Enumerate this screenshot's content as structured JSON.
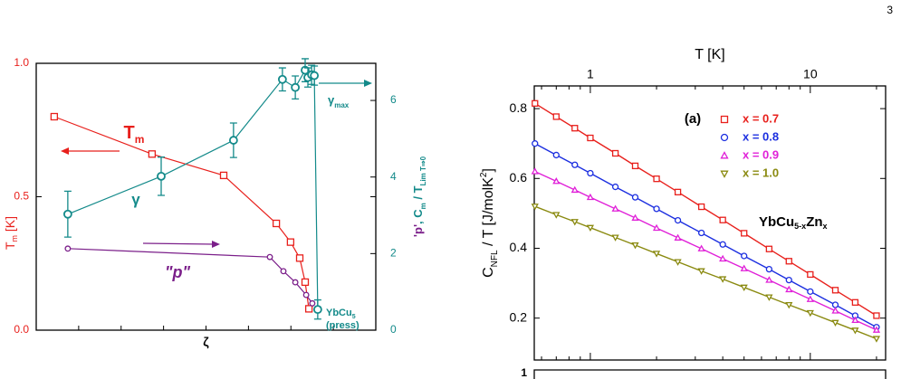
{
  "page_number": "3",
  "lower_panel": {
    "ytick_label": "1"
  },
  "chart_data": [
    {
      "type": "line",
      "xlabel": "ζ",
      "xlim": [
        0,
        1
      ],
      "ylim": [
        0,
        1
      ],
      "yticks": [
        {
          "value": 0,
          "label": "0.0"
        },
        {
          "value": 0.5,
          "label": "0.5"
        },
        {
          "value": 1,
          "label": "1.0"
        }
      ],
      "y2lim": [
        0,
        6.97
      ],
      "y2ticks": [
        0,
        2,
        4,
        6
      ],
      "ycolor": "#e8201c",
      "y2color": "#138a8a",
      "ylabel": [
        {
          "text": "T",
          "color": "#e8201c"
        },
        {
          "text": "m",
          "sub": true,
          "color": "#e8201c"
        },
        {
          "text": " [K]",
          "color": "#e8201c"
        }
      ],
      "y2label": [
        {
          "text": "'p'",
          "color": "#7b1f8a"
        },
        {
          "text": ", C",
          "color": "#138a8a"
        },
        {
          "text": "m",
          "sub": true,
          "color": "#138a8a"
        },
        {
          "text": " / T",
          "color": "#138a8a"
        },
        {
          "text": "Lim T⇒0",
          "sub": true,
          "color": "#138a8a"
        }
      ],
      "series": [
        {
          "color": "#e8201c",
          "marker": "square",
          "x": [
            0.053,
            0.341,
            0.552,
            0.707,
            0.749,
            0.776,
            0.792,
            0.803
          ],
          "values": [
            0.8,
            0.66,
            0.58,
            0.4,
            0.33,
            0.27,
            0.18,
            0.08
          ]
        },
        {
          "color": "#138a8a",
          "marker": "circle",
          "axis": "y2",
          "x": [
            0.093,
            0.368,
            0.581,
            0.725,
            0.763,
            0.792,
            0.8,
            0.811,
            0.819,
            0.829
          ],
          "values": [
            3.03,
            4.02,
            4.96,
            6.55,
            6.34,
            6.79,
            6.6,
            6.67,
            6.65,
            0.54
          ],
          "errors": [
            0.6,
            0.5,
            0.45,
            0.3,
            0.3,
            0.3,
            0.25,
            0.25,
            0.25,
            0.25
          ]
        },
        {
          "color": "#7b1f8a",
          "marker": "dot",
          "axis": "y2",
          "x": [
            0.093,
            0.688,
            0.728,
            0.763,
            0.795,
            0.813
          ],
          "values": [
            2.13,
            1.91,
            1.54,
            1.25,
            0.92,
            0.7
          ]
        }
      ],
      "annotations": [
        {
          "parts": [
            {
              "text": "T"
            },
            {
              "text": "m",
              "sub": true
            }
          ],
          "color": "#e8201c"
        },
        {
          "parts": [
            {
              "text": "γ"
            }
          ],
          "color": "#138a8a"
        },
        {
          "parts": [
            {
              "text": "\"p\""
            }
          ],
          "color": "#7b1f8a"
        },
        {
          "parts": [
            {
              "text": "γ"
            },
            {
              "text": "max",
              "sub": true
            }
          ],
          "color": "#138a8a"
        },
        {
          "parts": [
            {
              "text": "YbCu"
            },
            {
              "text": "5",
              "sub": true
            }
          ],
          "color": "#138a8a"
        },
        {
          "parts": [
            {
              "text": "(press)"
            }
          ],
          "color": "#138a8a"
        }
      ]
    },
    {
      "type": "line",
      "xlabel": "T [K]",
      "xlog": true,
      "xlim": [
        0.556,
        22
      ],
      "xticks": [
        1,
        10
      ],
      "ylim": [
        0.08,
        0.865
      ],
      "yticks": [
        0.2,
        0.4,
        0.6,
        0.8
      ],
      "ylabel": [
        {
          "text": "C"
        },
        {
          "text": "NFL",
          "sub": true
        },
        {
          "text": " / T  [J/molK"
        },
        {
          "text": "2",
          "sup": true
        },
        {
          "text": "]"
        }
      ],
      "series": [
        {
          "name": "x = 0.7",
          "color": "#e8201c",
          "marker": "square",
          "x": [
            0.56,
            0.7,
            0.85,
            1.0,
            1.3,
            1.6,
            2.0,
            2.5,
            3.2,
            4.0,
            5.0,
            6.5,
            8.0,
            10,
            13,
            16,
            20
          ],
          "values": [
            0.815,
            0.777,
            0.744,
            0.716,
            0.672,
            0.636,
            0.599,
            0.561,
            0.519,
            0.481,
            0.443,
            0.398,
            0.363,
            0.325,
            0.28,
            0.245,
            0.207
          ]
        },
        {
          "name": "x = 0.8",
          "color": "#1c2fe0",
          "marker": "circle",
          "x": [
            0.56,
            0.7,
            0.85,
            1.0,
            1.3,
            1.6,
            2.0,
            2.5,
            3.2,
            4.0,
            5.0,
            6.5,
            8.0,
            10,
            13,
            16,
            20
          ],
          "values": [
            0.7,
            0.667,
            0.639,
            0.615,
            0.576,
            0.546,
            0.513,
            0.48,
            0.444,
            0.411,
            0.378,
            0.34,
            0.309,
            0.276,
            0.238,
            0.207,
            0.174
          ]
        },
        {
          "name": "x = 0.9",
          "color": "#e020d8",
          "marker": "triangle-up",
          "x": [
            0.56,
            0.7,
            0.85,
            1.0,
            1.3,
            1.6,
            2.0,
            2.5,
            3.2,
            4.0,
            5.0,
            6.5,
            8.0,
            10,
            13,
            16,
            20
          ],
          "values": [
            0.62,
            0.592,
            0.567,
            0.546,
            0.513,
            0.487,
            0.458,
            0.43,
            0.399,
            0.37,
            0.342,
            0.309,
            0.282,
            0.254,
            0.221,
            0.194,
            0.166
          ]
        },
        {
          "name": "x = 1.0",
          "color": "#8a8a10",
          "marker": "triangle-down",
          "x": [
            0.56,
            0.7,
            0.85,
            1.0,
            1.3,
            1.6,
            2.0,
            2.5,
            3.2,
            4.0,
            5.0,
            6.5,
            8.0,
            10,
            13,
            16,
            20
          ],
          "values": [
            0.52,
            0.496,
            0.476,
            0.459,
            0.431,
            0.409,
            0.385,
            0.361,
            0.335,
            0.312,
            0.288,
            0.26,
            0.238,
            0.215,
            0.187,
            0.165,
            0.141
          ]
        }
      ],
      "annotations": [
        {
          "parts": [
            {
              "text": "(a)"
            }
          ]
        },
        {
          "parts": [
            {
              "text": "YbCu"
            },
            {
              "text": "5-x",
              "sub": true
            },
            {
              "text": "Zn"
            },
            {
              "text": "x",
              "sub": true
            }
          ]
        }
      ]
    }
  ]
}
